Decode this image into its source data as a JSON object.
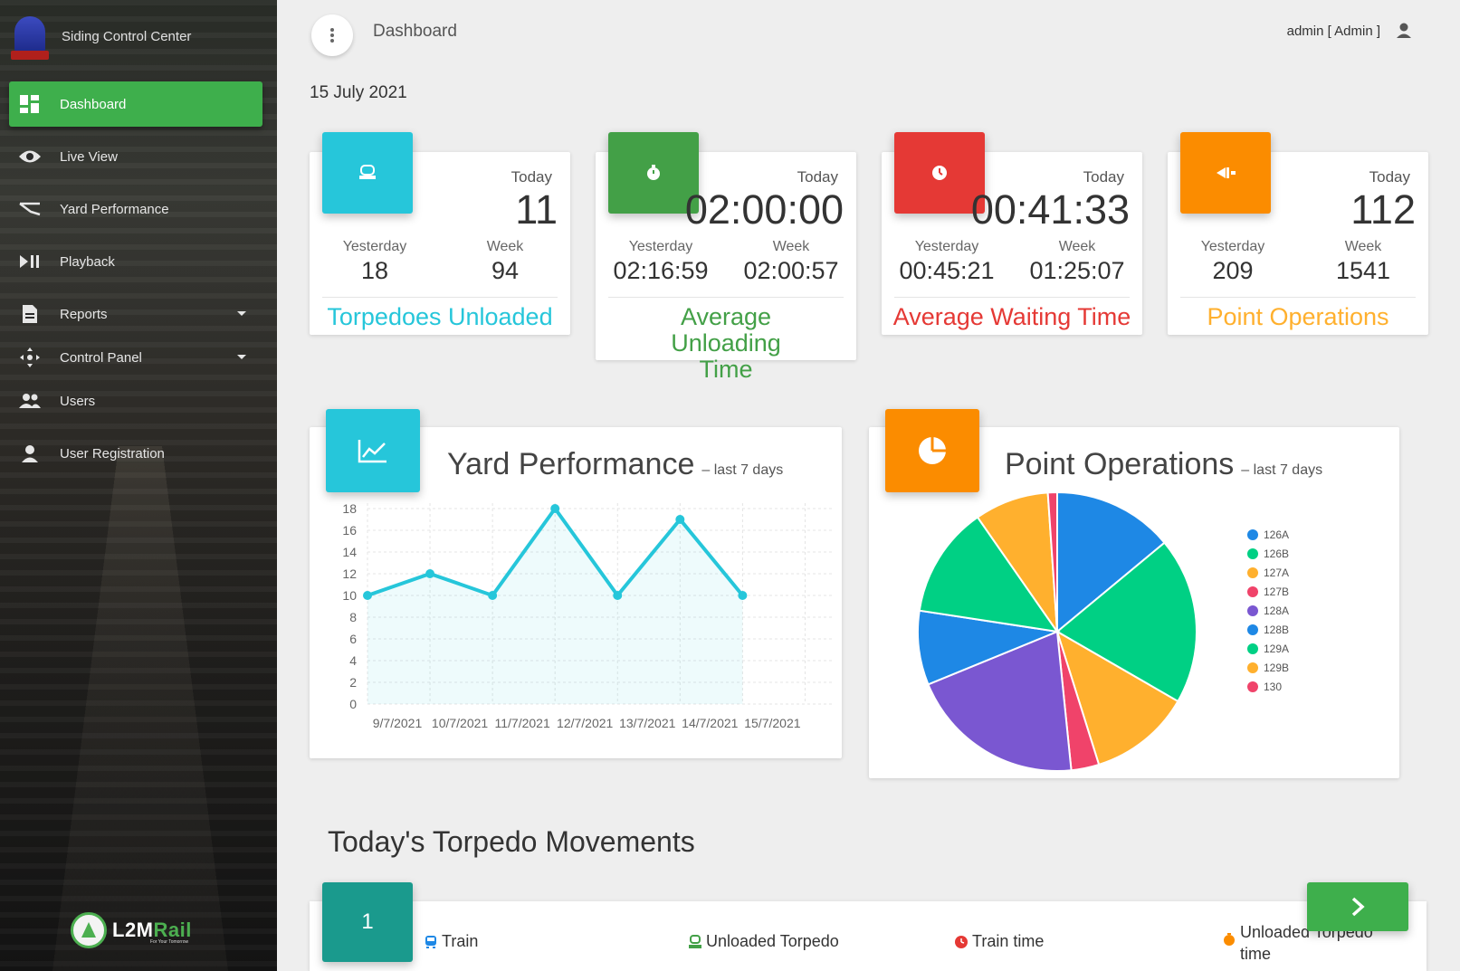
{
  "app": {
    "title": "Siding Control Center"
  },
  "sidebar": {
    "items": [
      {
        "label": "Dashboard",
        "icon": "dashboard-icon",
        "active": true
      },
      {
        "label": "Live View",
        "icon": "eye-icon"
      },
      {
        "label": "Yard Performance",
        "icon": "yard-performance-icon"
      },
      {
        "label": "Playback",
        "icon": "play-pause-icon"
      },
      {
        "label": "Reports",
        "icon": "document-icon",
        "has_submenu": true
      },
      {
        "label": "Control Panel",
        "icon": "move-arrows-icon",
        "has_submenu": true
      },
      {
        "label": "Users",
        "icon": "users-icon"
      },
      {
        "label": "User Registration",
        "icon": "user-icon"
      }
    ],
    "footer_logo": {
      "text_white": "L2M",
      "text_green": "Rail",
      "tagline": "For Your Tomorrow"
    }
  },
  "header": {
    "title": "Dashboard",
    "user": "admin [ Admin ]"
  },
  "date": "15 July 2021",
  "stats": [
    {
      "today_label": "Today",
      "today": "11",
      "yesterday_label": "Yesterday",
      "yesterday": "18",
      "week_label": "Week",
      "week": "94",
      "title": "Torpedoes Unloaded",
      "color": "#26c6da",
      "icon": "torpedo-icon"
    },
    {
      "today_label": "Today",
      "today": "02:00:00",
      "yesterday_label": "Yesterday",
      "yesterday": "02:16:59",
      "week_label": "Week",
      "week": "02:00:57",
      "title": "Average Unloading Time",
      "color": "#43a047",
      "icon": "stopwatch-icon"
    },
    {
      "today_label": "Today",
      "today": "00:41:33",
      "yesterday_label": "Yesterday",
      "yesterday": "00:45:21",
      "week_label": "Week",
      "week": "01:25:07",
      "title": "Average Waiting Time",
      "color": "#e53935",
      "icon": "clock-icon"
    },
    {
      "today_label": "Today",
      "today": "112",
      "yesterday_label": "Yesterday",
      "yesterday": "209",
      "week_label": "Week",
      "week": "1541",
      "title": "Point Operations",
      "color": "#fb8c00",
      "icon": "switch-icon"
    }
  ],
  "yard_chart": {
    "title": "Yard Performance",
    "subtitle": "– last 7 days",
    "icon": "line-chart-icon"
  },
  "point_chart": {
    "title": "Point Operations",
    "subtitle": "– last 7 days",
    "icon": "pie-chart-icon"
  },
  "chart_data": [
    {
      "type": "area",
      "categories": [
        "9/7/2021",
        "10/7/2021",
        "11/7/2021",
        "12/7/2021",
        "13/7/2021",
        "14/7/2021",
        "15/7/2021"
      ],
      "values": [
        10,
        12,
        10,
        18,
        10,
        17,
        10
      ],
      "title": "Yard Performance",
      "ylim": [
        0,
        18
      ],
      "yticks": [
        0,
        2,
        4,
        6,
        8,
        10,
        12,
        14,
        16,
        18
      ],
      "color": "#26c6da",
      "grid": true
    },
    {
      "type": "pie",
      "title": "Point Operations",
      "labels": [
        "126A",
        "126B",
        "127A",
        "127B",
        "128A",
        "128B",
        "129A",
        "129B",
        "130"
      ],
      "values": [
        13,
        18,
        11,
        3,
        19,
        8,
        12,
        8,
        1
      ],
      "colors": [
        "#1e88e5",
        "#00d084",
        "#ffb02e",
        "#f0436a",
        "#7a57d1",
        "#1e88e5",
        "#00d084",
        "#ffb02e",
        "#f0436a"
      ],
      "legend": "right"
    }
  ],
  "movements": {
    "title": "Today's Torpedo Movements",
    "number": "1",
    "columns": [
      {
        "label": "Train",
        "icon": "train-icon",
        "color": "#1e88e5"
      },
      {
        "label": "Unloaded Torpedo",
        "icon": "torpedo-icon",
        "color": "#43a047"
      },
      {
        "label": "Train time",
        "icon": "clock-icon",
        "color": "#e53935"
      },
      {
        "label": "Unloaded Torpedo time",
        "icon": "stopwatch-icon",
        "color": "#fb8c00"
      }
    ],
    "next_icon": "chevron-right-icon"
  }
}
